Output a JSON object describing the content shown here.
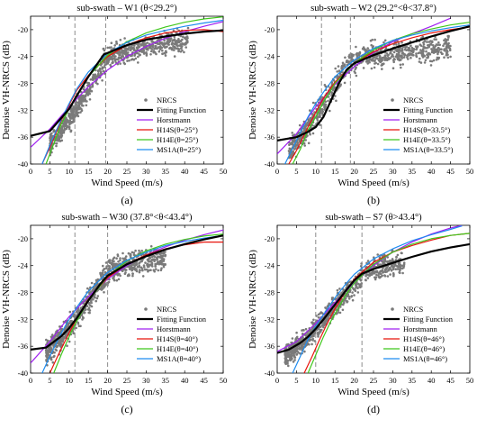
{
  "colors": {
    "nrcs": "#7a7a7a",
    "fit": "#000000",
    "horstmann": "#a020f0",
    "h14s": "#e8140c",
    "h14e": "#3fc81c",
    "ms1a": "#1e8cf0",
    "guide": "#8c8c8c"
  },
  "chart_data": [
    {
      "type": "scatter",
      "caption": "(a)",
      "title": "sub-swath – W1 (θ<29.2°)",
      "xlabel": "Wind Speed (m/s)",
      "ylabel": "Denoise VH-NRCS (dB)",
      "xlim": [
        0,
        50
      ],
      "ylim": [
        -40,
        -18
      ],
      "xticks": [
        "0",
        "5",
        "10",
        "15",
        "20",
        "25",
        "30",
        "35",
        "40",
        "45",
        "50"
      ],
      "yticks": [
        "-20",
        "-24",
        "-28",
        "-32",
        "-36",
        "-40"
      ],
      "guides_x": [
        11.5,
        19.5
      ],
      "legend": [
        "NRCS",
        "Fitting Function",
        "Horstmann",
        "H14S(θ=25°)",
        "H14E(θ=25°)",
        "MS1A(θ=25°)"
      ],
      "scatter": {
        "x_range": [
          5,
          41
        ],
        "y_start": -37,
        "y_knee": -25,
        "x_knee": 19,
        "y_end": -21.5,
        "spread": 1.6
      },
      "series": [
        {
          "key": "fit",
          "x": [
            0,
            5,
            10,
            12,
            15,
            19,
            25,
            30,
            35,
            40,
            45,
            50
          ],
          "y": [
            -35.8,
            -35.1,
            -31.8,
            -29.8,
            -27,
            -23.7,
            -22.3,
            -21.5,
            -21,
            -20.6,
            -20.3,
            -20.1
          ]
        },
        {
          "key": "horstmann",
          "x": [
            0,
            5,
            10,
            15,
            20,
            25,
            30,
            35,
            40,
            45,
            50
          ],
          "y": [
            -37.5,
            -34.8,
            -31.5,
            -28.5,
            -26,
            -24,
            -22.5,
            -21.3,
            -20.3,
            -19.5,
            -18.8
          ]
        },
        {
          "key": "h14s",
          "x": [
            3,
            5,
            8,
            10,
            12,
            15,
            20,
            25,
            30,
            35,
            40,
            45,
            50
          ],
          "y": [
            -40,
            -37.5,
            -33.5,
            -31.2,
            -29,
            -26.8,
            -24,
            -22.3,
            -21.2,
            -20.5,
            -20.1,
            -20,
            -20.3
          ]
        },
        {
          "key": "h14e",
          "x": [
            4,
            6,
            8,
            10,
            12,
            15,
            20,
            25,
            30,
            35,
            40,
            45,
            50
          ],
          "y": [
            -40,
            -37,
            -34,
            -31.8,
            -29.8,
            -27,
            -23.8,
            -21.8,
            -20.5,
            -19.6,
            -18.9,
            -18.4,
            -18.1
          ]
        },
        {
          "key": "ms1a",
          "x": [
            3,
            5,
            8,
            10,
            12,
            15,
            20,
            25,
            30,
            35,
            40,
            45,
            50
          ],
          "y": [
            -40,
            -37.2,
            -33.3,
            -31,
            -28.8,
            -26.3,
            -23.5,
            -21.9,
            -20.8,
            -20.1,
            -19.5,
            -19,
            -18.6
          ]
        }
      ]
    },
    {
      "type": "scatter",
      "caption": "(b)",
      "title": "sub-swath – W2 (29.2°<θ<37.8°)",
      "xlabel": "Wind Speed (m/s)",
      "ylabel": "Denoise VH-NRCS (dB)",
      "xlim": [
        0,
        50
      ],
      "ylim": [
        -40,
        -18
      ],
      "xticks": [
        "0",
        "5",
        "10",
        "15",
        "20",
        "25",
        "30",
        "35",
        "40",
        "45",
        "50"
      ],
      "yticks": [
        "-20",
        "-24",
        "-28",
        "-32",
        "-36",
        "-40"
      ],
      "guides_x": [
        11.5,
        19
      ],
      "legend": [
        "NRCS",
        "Fitting Function",
        "Horstmann",
        "H14S(θ=33.5°)",
        "H14E(θ=33.5°)",
        "MS1A(θ=33.5°)"
      ],
      "scatter": {
        "x_range": [
          3,
          45
        ],
        "y_start": -38,
        "y_knee": -25.5,
        "x_knee": 18,
        "y_end": -22.5,
        "spread": 1.7
      },
      "series": [
        {
          "key": "fit",
          "x": [
            0,
            5,
            8,
            10,
            12,
            14,
            16,
            18,
            20,
            25,
            30,
            35,
            40,
            45,
            50
          ],
          "y": [
            -36.5,
            -36,
            -35.2,
            -34.5,
            -33,
            -30.5,
            -28,
            -26,
            -25,
            -23.8,
            -22.8,
            -21.9,
            -21,
            -20.2,
            -19.5
          ]
        },
        {
          "key": "horstmann",
          "x": [
            0,
            5,
            10,
            15,
            20,
            25,
            30,
            35,
            40,
            45
          ],
          "y": [
            -38.5,
            -35.5,
            -31.5,
            -28.2,
            -25.5,
            -23.4,
            -21.8,
            -20.6,
            -19.5,
            -18.3
          ]
        },
        {
          "key": "h14s",
          "x": [
            3,
            5,
            8,
            10,
            12,
            15,
            20,
            25,
            30,
            35,
            40,
            45,
            50
          ],
          "y": [
            -40,
            -38,
            -34.5,
            -32.3,
            -30.2,
            -27.8,
            -25,
            -23.3,
            -22.1,
            -21.2,
            -20.5,
            -20,
            -19.6
          ]
        },
        {
          "key": "h14e",
          "x": [
            4,
            6,
            8,
            10,
            12,
            15,
            20,
            25,
            30,
            35,
            40,
            45,
            50
          ],
          "y": [
            -40,
            -37.8,
            -35,
            -33,
            -30.8,
            -28,
            -25,
            -23,
            -21.6,
            -20.6,
            -19.9,
            -19.3,
            -18.9
          ]
        },
        {
          "key": "ms1a",
          "x": [
            2,
            5,
            8,
            10,
            12,
            15,
            20,
            25,
            30,
            35,
            40,
            45,
            50
          ],
          "y": [
            -40,
            -36.5,
            -33,
            -31,
            -29.3,
            -27,
            -24.5,
            -22.8,
            -21.6,
            -20.8,
            -20.2,
            -19.7,
            -19.3
          ]
        }
      ]
    },
    {
      "type": "scatter",
      "caption": "(c)",
      "title": "sub-swath – W30 (37.8°<θ<43.4°)",
      "xlabel": "Wind Speed (m/s)",
      "ylabel": "Denoise VH-NRCS (dB)",
      "xlim": [
        0,
        50
      ],
      "ylim": [
        -40,
        -18
      ],
      "xticks": [
        "0",
        "5",
        "10",
        "15",
        "20",
        "25",
        "30",
        "35",
        "40",
        "45",
        "50"
      ],
      "yticks": [
        "-20",
        "-24",
        "-28",
        "-32",
        "-36",
        "-40"
      ],
      "guides_x": [
        11.5,
        20
      ],
      "legend": [
        "NRCS",
        "Fitting Function",
        "Horstmann",
        "H14S(θ=40°)",
        "H14E(θ=40°)",
        "MS1A(θ=40°)"
      ],
      "scatter": {
        "x_range": [
          4,
          35
        ],
        "y_start": -37,
        "y_knee": -25,
        "x_knee": 20,
        "y_end": -23,
        "spread": 1.6
      },
      "series": [
        {
          "key": "fit",
          "x": [
            0,
            4,
            8,
            10,
            12,
            15,
            18,
            20,
            25,
            30,
            35,
            40,
            45,
            50
          ],
          "y": [
            -36.5,
            -36.2,
            -34.5,
            -33.3,
            -31.8,
            -29.2,
            -26.8,
            -25.5,
            -23.8,
            -22.6,
            -21.6,
            -20.8,
            -20.1,
            -19.5
          ]
        },
        {
          "key": "horstmann",
          "x": [
            0,
            5,
            10,
            15,
            20,
            25,
            30,
            35,
            40,
            45,
            50
          ],
          "y": [
            -38.5,
            -35.3,
            -31.6,
            -28.6,
            -26,
            -24,
            -22.4,
            -21.2,
            -20.2,
            -19.4,
            -18.7
          ]
        },
        {
          "key": "h14s",
          "x": [
            5,
            7,
            10,
            12,
            15,
            20,
            25,
            30,
            35,
            40,
            45,
            50
          ],
          "y": [
            -40,
            -37.5,
            -34,
            -31.8,
            -29,
            -25.8,
            -23.8,
            -22.4,
            -21.5,
            -20.9,
            -20.5,
            -20.5
          ]
        },
        {
          "key": "h14e",
          "x": [
            6,
            8,
            10,
            12,
            15,
            20,
            25,
            30,
            35,
            40,
            45,
            50
          ],
          "y": [
            -40,
            -37.2,
            -34.6,
            -32.2,
            -29.2,
            -25.6,
            -23.3,
            -21.8,
            -20.8,
            -20.1,
            -19.6,
            -19.3
          ]
        },
        {
          "key": "ms1a",
          "x": [
            3,
            5,
            8,
            10,
            12,
            15,
            20,
            25,
            30,
            35,
            40,
            45,
            50
          ],
          "y": [
            -40,
            -37.5,
            -34,
            -32,
            -30.2,
            -27.8,
            -25,
            -23.2,
            -22,
            -21,
            -20.4,
            -19.9,
            -19.5
          ]
        }
      ]
    },
    {
      "type": "scatter",
      "caption": "(d)",
      "title": "sub-swath – S7 (θ>43.4°)",
      "xlabel": "Wind Speed (m/s)",
      "ylabel": "Denoise VH-NRCS (dB)",
      "xlim": [
        0,
        50
      ],
      "ylim": [
        -40,
        -18
      ],
      "xticks": [
        "0",
        "5",
        "10",
        "15",
        "20",
        "25",
        "30",
        "35",
        "40",
        "45",
        "50"
      ],
      "yticks": [
        "-20",
        "-24",
        "-28",
        "-32",
        "-36",
        "-40"
      ],
      "guides_x": [
        10,
        22
      ],
      "legend": [
        "NRCS",
        "Fitting Function",
        "Horstmann",
        "H14S(θ=46°)",
        "H14E(θ=46°)",
        "MS1A(θ=46°)"
      ],
      "scatter": {
        "x_range": [
          2,
          33
        ],
        "y_start": -37.5,
        "y_knee": -25.5,
        "x_knee": 22,
        "y_end": -23.5,
        "spread": 1.5
      },
      "series": [
        {
          "key": "fit",
          "x": [
            0,
            3,
            6,
            8,
            10,
            12,
            15,
            18,
            20,
            22,
            25,
            30,
            35,
            40,
            45,
            50
          ],
          "y": [
            -37,
            -36.5,
            -35.5,
            -34.6,
            -33.4,
            -32,
            -29.8,
            -27.6,
            -26.2,
            -25.2,
            -24.5,
            -23.6,
            -22.7,
            -21.9,
            -21.3,
            -20.8
          ]
        },
        {
          "key": "horstmann",
          "x": [
            0,
            5,
            10,
            15,
            20,
            25,
            30,
            35,
            40,
            45,
            48
          ],
          "y": [
            -36.8,
            -35.3,
            -32.6,
            -29.5,
            -26.5,
            -24,
            -22,
            -20.5,
            -19.3,
            -18.4,
            -18
          ]
        },
        {
          "key": "h14s",
          "x": [
            7,
            9,
            11,
            13,
            15,
            18,
            20,
            25,
            30,
            35,
            40,
            45,
            50
          ],
          "y": [
            -40,
            -37.6,
            -35,
            -32.6,
            -30.4,
            -27.6,
            -26,
            -23.5,
            -22,
            -21,
            -20.2,
            -19.5,
            -19.2
          ]
        },
        {
          "key": "h14e",
          "x": [
            8,
            10,
            12,
            14,
            16,
            18,
            20,
            25,
            30,
            35,
            40,
            45,
            50
          ],
          "y": [
            -40,
            -37.3,
            -34.6,
            -32.2,
            -30.2,
            -28.2,
            -26.6,
            -23.8,
            -22,
            -20.8,
            -20,
            -19.5,
            -19.2
          ]
        },
        {
          "key": "ms1a",
          "x": [
            4,
            6,
            8,
            10,
            12,
            15,
            18,
            20,
            25,
            30,
            35,
            40,
            45,
            48
          ],
          "y": [
            -40,
            -37.5,
            -35,
            -33,
            -31.3,
            -28.8,
            -26.6,
            -25.3,
            -23,
            -21.5,
            -20.3,
            -19.4,
            -18.6,
            -18.1
          ]
        }
      ]
    }
  ]
}
